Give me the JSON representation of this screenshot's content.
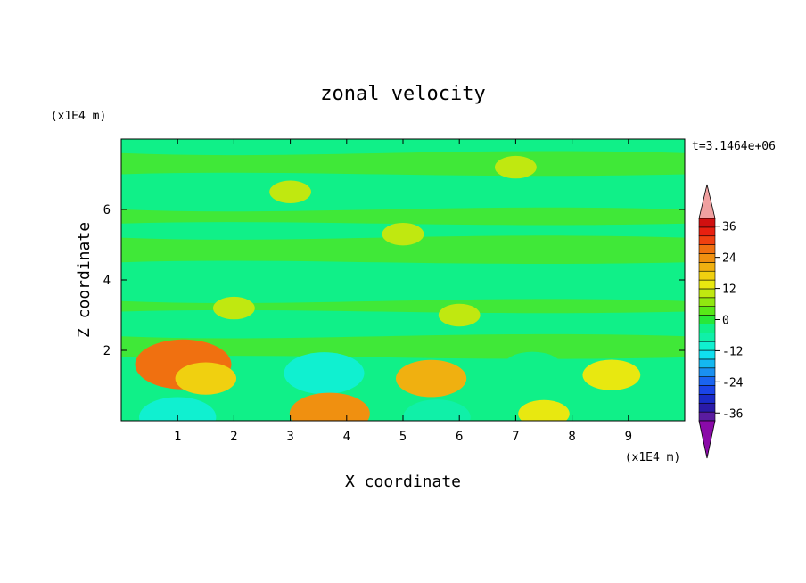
{
  "chart_data": {
    "type": "heatmap",
    "title": "zonal velocity",
    "xlabel": "X coordinate",
    "ylabel": "Z coordinate",
    "x_unit": "(x1E4 m)",
    "y_unit": "(x1E4 m)",
    "time_label": "t=3.1464e+06",
    "xlim": [
      0,
      10
    ],
    "ylim": [
      0,
      8
    ],
    "x_ticks": [
      1,
      2,
      3,
      4,
      5,
      6,
      7,
      8,
      9
    ],
    "y_ticks": [
      2,
      4,
      6
    ],
    "colorbar": {
      "levels": [
        -42,
        -39,
        -36,
        -33,
        -30,
        -27,
        -24,
        -21,
        -18,
        -15,
        -12,
        -9,
        -6,
        -3,
        0,
        3,
        6,
        9,
        12,
        15,
        18,
        21,
        24,
        27,
        30,
        33,
        36,
        39,
        42
      ],
      "tick_labels": [
        "36",
        "24",
        "12",
        "0",
        "-12",
        "-24",
        "-36"
      ],
      "tick_values": [
        36,
        24,
        12,
        0,
        -12,
        -24,
        -36
      ],
      "colors": [
        "#8a0aa8",
        "#5a1ca0",
        "#2a1aa8",
        "#1a2ac8",
        "#1a44e8",
        "#1a64f0",
        "#1a90f0",
        "#14b8f0",
        "#10e0f0",
        "#10f0d0",
        "#10f0a8",
        "#10f088",
        "#28e838",
        "#58e818",
        "#90e810",
        "#c0e810",
        "#e8e810",
        "#f0d010",
        "#f0b010",
        "#f09010",
        "#f07010",
        "#f04010",
        "#e82010",
        "#d01010",
        "#f0a0a0"
      ],
      "under_color": "#8a0aa8",
      "over_color": "#f0a0a0"
    },
    "field": {
      "background": 0,
      "blobs": [
        {
          "x": 1.2,
          "z": 1.5,
          "value": 14
        },
        {
          "x": 1.1,
          "z": 1.6,
          "value": 20
        },
        {
          "x": 1.5,
          "z": 1.2,
          "value": 9
        },
        {
          "x": 3.6,
          "z": 1.4,
          "value": -9
        },
        {
          "x": 3.6,
          "z": 1.35,
          "value": -15
        },
        {
          "x": 3.7,
          "z": 0.2,
          "value": 15
        },
        {
          "x": 5.5,
          "z": 1.2,
          "value": 12
        },
        {
          "x": 7.3,
          "z": 1.5,
          "value": -9
        },
        {
          "x": 8.7,
          "z": 1.3,
          "value": 8
        },
        {
          "x": 7.5,
          "z": 0.2,
          "value": 6
        },
        {
          "x": 1.0,
          "z": 0.1,
          "value": -14
        },
        {
          "x": 5.6,
          "z": 0.1,
          "value": -11
        },
        {
          "x": 2.0,
          "z": 3.2,
          "value": 3
        },
        {
          "x": 6.0,
          "z": 3.0,
          "value": 3
        },
        {
          "x": 5.0,
          "z": 5.3,
          "value": 3
        },
        {
          "x": 3.0,
          "z": 6.5,
          "value": 3
        },
        {
          "x": 7.0,
          "z": 7.2,
          "value": 3
        }
      ]
    }
  }
}
